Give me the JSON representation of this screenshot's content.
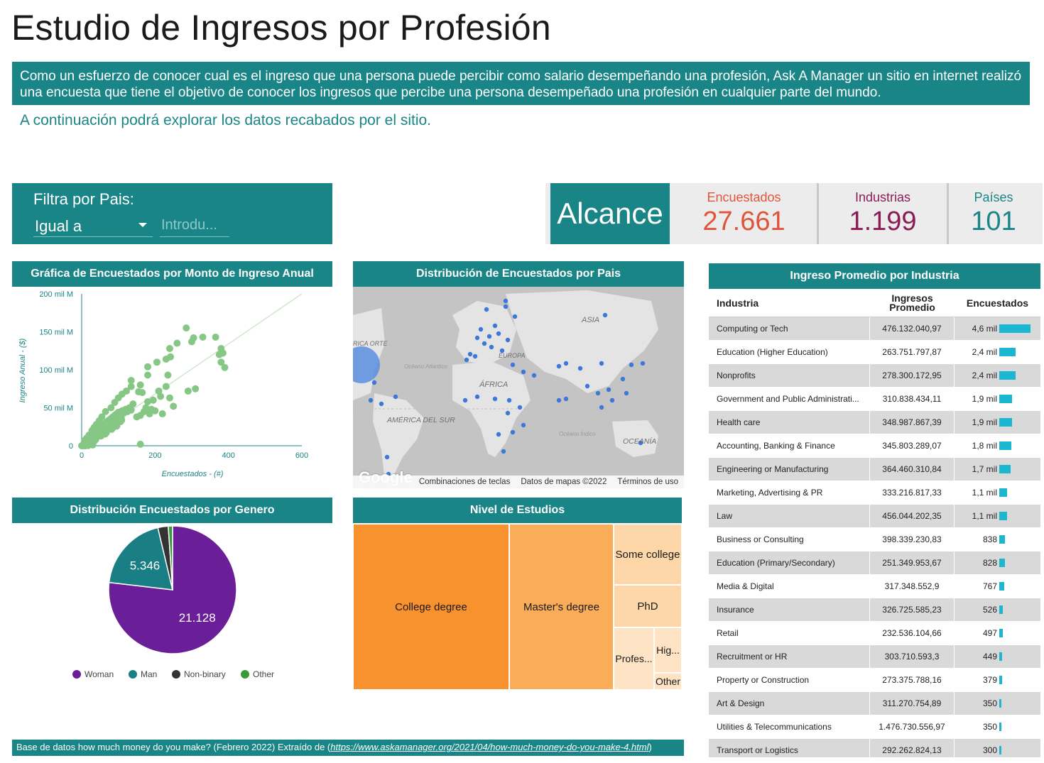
{
  "title": "Estudio de Ingresos por Profesión",
  "intro": "Como un esfuerzo de conocer cual es el ingreso que una persona puede percibir como salario desempeñando una profesión, Ask A Manager un sitio en internet realizó una encuesta que tiene el objetivo de conocer los ingresos que percibe una persona desempeñado una profesión en cualquier parte del mundo.",
  "intro_sub": "A continuación podrá explorar los datos recabados por el sitio.",
  "filter": {
    "label": "Filtra por Pais:",
    "operator": "Igual a",
    "placeholder": "Introdu..."
  },
  "scope": {
    "title": "Alcance",
    "kpis": [
      {
        "label": "Encuestados",
        "value": "27.661",
        "color": "#e0553a"
      },
      {
        "label": "Industrias",
        "value": "1.199",
        "color": "#8b1c56"
      },
      {
        "label": "Países",
        "value": "101",
        "color": "#1a8587"
      }
    ]
  },
  "scatter": {
    "title": "Gráfica de Encuestados por Monto de Ingreso Anual",
    "xlabel": "Encuestados - (#)",
    "ylabel": "Ingreso Anual - ($)",
    "ytick_labels": [
      "0",
      "50 mil M",
      "100 mil M",
      "150 mil M",
      "200 mil M"
    ],
    "xtick_labels": [
      "0",
      "200",
      "400",
      "600"
    ]
  },
  "map": {
    "title": "Distribución de Encuestados por Pais",
    "labels": [
      "ASIA",
      "ÁFRICA",
      "AMÉRICA DEL SUR",
      "OCEANÍA",
      "Océano Atlántico",
      "Océano Índico",
      "RICA ORTE",
      "EUROPA"
    ],
    "footer": [
      "Combinaciones de teclas",
      "Datos de mapas ©2022",
      "Términos de uso"
    ],
    "logo": "Google"
  },
  "gender": {
    "title": "Distribución Encuestados por Genero",
    "legend": [
      {
        "label": "Woman",
        "color": "#6a1f99"
      },
      {
        "label": "Man",
        "color": "#1a7f84"
      },
      {
        "label": "Non-binary",
        "color": "#333333"
      },
      {
        "label": "Other",
        "color": "#3a9a3a"
      }
    ]
  },
  "education": {
    "title": "Nivel de Estudios",
    "items": [
      {
        "label": "College degree",
        "color": "#f7922e"
      },
      {
        "label": "Master's degree",
        "color": "#f9ad59"
      },
      {
        "label": "Some college",
        "color": "#fdd7a8"
      },
      {
        "label": "PhD",
        "color": "#fdd7a8"
      },
      {
        "label": "Profes...",
        "color": "#fee4c4"
      },
      {
        "label": "Hig...",
        "color": "#fee4c4"
      },
      {
        "label": "Other",
        "color": "#fee4c4"
      }
    ]
  },
  "source": {
    "prefix": "Base de datos how much money do you make? (Febrero 2022) Extraído de (",
    "link": "https://www.askamanager.org/2021/04/how-much-money-do-you-make-4.html",
    "suffix": ")"
  },
  "industry": {
    "title": "Ingreso Promedio por Industria",
    "columns": [
      "Industria",
      "Ingresos Promedio",
      "Encuestados"
    ],
    "rows": [
      {
        "name": "Computing or Tech",
        "avg": "476.132.040,97",
        "count_label": "4,6 mil",
        "count": 4600
      },
      {
        "name": "Education (Higher Education)",
        "avg": "263.751.797,87",
        "count_label": "2,4 mil",
        "count": 2400
      },
      {
        "name": "Nonprofits",
        "avg": "278.300.172,95",
        "count_label": "2,4 mil",
        "count": 2400
      },
      {
        "name": "Government and Public Administrati...",
        "avg": "310.838.434,11",
        "count_label": "1,9 mil",
        "count": 1900
      },
      {
        "name": "Health care",
        "avg": "348.987.867,39",
        "count_label": "1,9 mil",
        "count": 1900
      },
      {
        "name": "Accounting, Banking & Finance",
        "avg": "345.803.289,07",
        "count_label": "1,8 mil",
        "count": 1800
      },
      {
        "name": "Engineering or Manufacturing",
        "avg": "364.460.310,84",
        "count_label": "1,7 mil",
        "count": 1700
      },
      {
        "name": "Marketing, Advertising & PR",
        "avg": "333.216.817,33",
        "count_label": "1,1 mil",
        "count": 1100
      },
      {
        "name": "Law",
        "avg": "456.044.202,35",
        "count_label": "1,1 mil",
        "count": 1100
      },
      {
        "name": "Business or Consulting",
        "avg": "398.339.230,83",
        "count_label": "838",
        "count": 838
      },
      {
        "name": "Education (Primary/Secondary)",
        "avg": "251.349.953,67",
        "count_label": "828",
        "count": 828
      },
      {
        "name": "Media & Digital",
        "avg": "317.348.552,9",
        "count_label": "767",
        "count": 767
      },
      {
        "name": "Insurance",
        "avg": "326.725.585,23",
        "count_label": "526",
        "count": 526
      },
      {
        "name": "Retail",
        "avg": "232.536.104,66",
        "count_label": "497",
        "count": 497
      },
      {
        "name": "Recruitment or HR",
        "avg": "303.710.593,3",
        "count_label": "449",
        "count": 449
      },
      {
        "name": "Property or Construction",
        "avg": "273.375.788,16",
        "count_label": "379",
        "count": 379
      },
      {
        "name": "Art & Design",
        "avg": "311.270.754,89",
        "count_label": "350",
        "count": 350
      },
      {
        "name": "Utilities & Telecommunications",
        "avg": "1.476.730.556,97",
        "count_label": "350",
        "count": 350
      },
      {
        "name": "Transport or Logistics",
        "avg": "292.262.824,13",
        "count_label": "300",
        "count": 300
      }
    ]
  },
  "chart_data": [
    {
      "type": "scatter",
      "title": "Gráfica de Encuestados por Monto de Ingreso Anual",
      "xlabel": "Encuestados - (#)",
      "ylabel": "Ingreso Anual - ($)",
      "xlim": [
        0,
        600
      ],
      "ylim": [
        0,
        200000000000
      ],
      "grid": false,
      "trendline": true,
      "points": [
        [
          5,
          2000000000.0
        ],
        [
          8,
          4000000000.0
        ],
        [
          10,
          6000000000.0
        ],
        [
          12,
          8000000000.0
        ],
        [
          15,
          5000000000.0
        ],
        [
          18,
          10000000000.0
        ],
        [
          20,
          12000000000.0
        ],
        [
          22,
          9000000000.0
        ],
        [
          25,
          14000000000.0
        ],
        [
          28,
          11000000000.0
        ],
        [
          30,
          16000000000.0
        ],
        [
          32,
          13000000000.0
        ],
        [
          35,
          18000000000.0
        ],
        [
          38,
          15000000000.0
        ],
        [
          40,
          20000000000.0
        ],
        [
          42,
          17000000000.0
        ],
        [
          45,
          22000000000.0
        ],
        [
          48,
          19000000000.0
        ],
        [
          50,
          24000000000.0
        ],
        [
          52,
          21000000000.0
        ],
        [
          55,
          26000000000.0
        ],
        [
          58,
          23000000000.0
        ],
        [
          60,
          28000000000.0
        ],
        [
          62,
          25000000000.0
        ],
        [
          65,
          30000000000.0
        ],
        [
          68,
          27000000000.0
        ],
        [
          70,
          32000000000.0
        ],
        [
          72,
          29000000000.0
        ],
        [
          75,
          34000000000.0
        ],
        [
          78,
          31000000000.0
        ],
        [
          80,
          36000000000.0
        ],
        [
          82,
          33000000000.0
        ],
        [
          85,
          38000000000.0
        ],
        [
          88,
          35000000000.0
        ],
        [
          90,
          40000000000.0
        ],
        [
          92,
          37000000000.0
        ],
        [
          95,
          42000000000.0
        ],
        [
          98,
          39000000000.0
        ],
        [
          100,
          44000000000.0
        ],
        [
          105,
          41000000000.0
        ],
        [
          110,
          46000000000.0
        ],
        [
          115,
          43000000000.0
        ],
        [
          120,
          48000000000.0
        ],
        [
          125,
          45000000000.0
        ],
        [
          130,
          50000000000.0
        ],
        [
          135,
          47000000000.0
        ],
        [
          140,
          55000000000.0
        ],
        [
          150,
          38000000000.0
        ],
        [
          160,
          40000000000.0
        ],
        [
          165,
          70000000000.0
        ],
        [
          170,
          45000000000.0
        ],
        [
          175,
          50000000000.0
        ],
        [
          180,
          58000000000.0
        ],
        [
          185,
          42000000000.0
        ],
        [
          190,
          48000000000.0
        ],
        [
          195,
          60000000000.0
        ],
        [
          200,
          46000000000.0
        ],
        [
          210,
          72000000000.0
        ],
        [
          215,
          65000000000.0
        ],
        [
          220,
          42000000000.0
        ],
        [
          230,
          78000000000.0
        ],
        [
          240,
          63000000000.0
        ],
        [
          250,
          52000000000.0
        ],
        [
          240,
          128000000000.0
        ],
        [
          242,
          117000000000.0
        ],
        [
          235,
          93000000000.0
        ],
        [
          230,
          114000000000.0
        ],
        [
          205,
          110000000000.0
        ],
        [
          180,
          93000000000.0
        ],
        [
          180,
          104000000000.0
        ],
        [
          160,
          80000000000.0
        ],
        [
          155,
          71000000000.0
        ],
        [
          135,
          78000000000.0
        ],
        [
          135,
          86000000000.0
        ],
        [
          122,
          72000000000.0
        ],
        [
          110,
          68000000000.0
        ],
        [
          100,
          63000000000.0
        ],
        [
          90,
          57000000000.0
        ],
        [
          80,
          50000000000.0
        ],
        [
          65,
          45000000000.0
        ],
        [
          55,
          38000000000.0
        ],
        [
          48,
          33000000000.0
        ],
        [
          40,
          28000000000.0
        ],
        [
          34,
          24000000000.0
        ],
        [
          28,
          20000000000.0
        ],
        [
          20,
          14000000000.0
        ],
        [
          12,
          8000000000.0
        ],
        [
          290,
          72000000000.0
        ],
        [
          310,
          75000000000.0
        ],
        [
          305,
          142000000000.0
        ],
        [
          285,
          155000000000.0
        ],
        [
          260,
          135000000000.0
        ],
        [
          300,
          137000000000.0
        ],
        [
          330,
          143000000000.0
        ],
        [
          365,
          143000000000.0
        ],
        [
          380,
          128000000000.0
        ],
        [
          375,
          120000000000.0
        ],
        [
          385,
          122000000000.0
        ],
        [
          380,
          110000000000.0
        ],
        [
          390,
          103000000000.0
        ],
        [
          160,
          2000000000.0
        ],
        [
          30,
          1000000000.0
        ]
      ]
    },
    {
      "type": "pie",
      "title": "Distribución Encuestados por Genero",
      "slices": [
        {
          "label": "Woman",
          "value": 21128,
          "color": "#6a1f99",
          "shown": "21.128"
        },
        {
          "label": "Man",
          "value": 5346,
          "color": "#1a7f84",
          "shown": "5.346"
        },
        {
          "label": "Non-binary",
          "value": 720,
          "color": "#333333"
        },
        {
          "label": "Other",
          "value": 300,
          "color": "#3a9a3a"
        }
      ]
    },
    {
      "type": "treemap",
      "title": "Nivel de Estudios",
      "items": [
        {
          "label": "College degree"
        },
        {
          "label": "Master's degree"
        },
        {
          "label": "Some college"
        },
        {
          "label": "PhD"
        },
        {
          "label": "Profes..."
        },
        {
          "label": "Hig..."
        },
        {
          "label": "Other"
        }
      ]
    },
    {
      "type": "table",
      "title": "Ingreso Promedio por Industria",
      "columns": [
        "Industria",
        "Ingresos Promedio",
        "Encuestados"
      ],
      "bar_max": 4600
    }
  ]
}
